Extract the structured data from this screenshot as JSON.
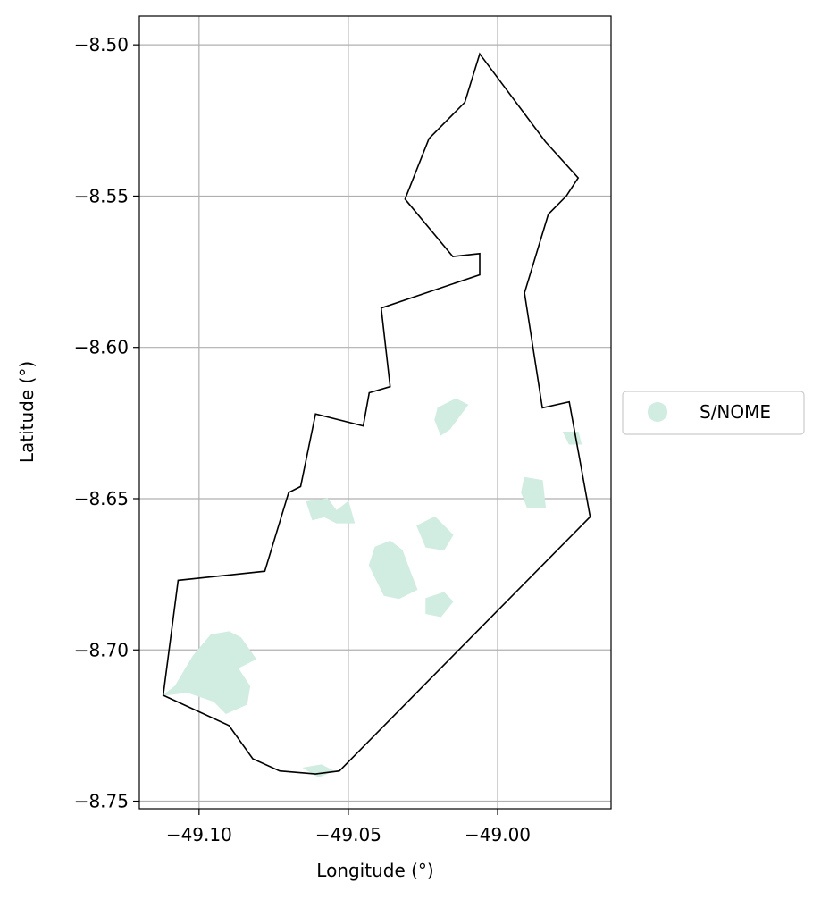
{
  "chart_data": {
    "type": "map",
    "xlabel": "Longitude (°)",
    "ylabel": "Latitude (°)",
    "xlim": [
      -49.12,
      -48.962
    ],
    "ylim": [
      -8.7525,
      -8.4905
    ],
    "xticks": [
      -49.1,
      -49.05,
      -49.0
    ],
    "xtick_labels": [
      "−49.10",
      "−49.05",
      "−49.00"
    ],
    "yticks": [
      -8.5,
      -8.55,
      -8.6,
      -8.65,
      -8.7,
      -8.75
    ],
    "ytick_labels": [
      "−8.50",
      "−8.55",
      "−8.60",
      "−8.65",
      "−8.70",
      "−8.75"
    ],
    "grid": true,
    "legend_position": "center-right-outside",
    "legend": [
      {
        "label": "S/NOME",
        "color": "#d1ece0"
      }
    ],
    "boundary": {
      "stroke_color": "#000000",
      "points": [
        [
          -49.006,
          -8.503
        ],
        [
          -48.984,
          -8.532
        ],
        [
          -48.973,
          -8.544
        ],
        [
          -48.977,
          -8.55
        ],
        [
          -48.983,
          -8.556
        ],
        [
          -48.991,
          -8.582
        ],
        [
          -48.985,
          -8.62
        ],
        [
          -48.976,
          -8.618
        ],
        [
          -48.969,
          -8.656
        ],
        [
          -49.053,
          -8.74
        ],
        [
          -49.061,
          -8.741
        ],
        [
          -49.073,
          -8.74
        ],
        [
          -49.082,
          -8.736
        ],
        [
          -49.09,
          -8.725
        ],
        [
          -49.112,
          -8.715
        ],
        [
          -49.107,
          -8.677
        ],
        [
          -49.078,
          -8.674
        ],
        [
          -49.07,
          -8.648
        ],
        [
          -49.066,
          -8.646
        ],
        [
          -49.061,
          -8.622
        ],
        [
          -49.045,
          -8.626
        ],
        [
          -49.043,
          -8.615
        ],
        [
          -49.036,
          -8.613
        ],
        [
          -49.039,
          -8.587
        ],
        [
          -49.006,
          -8.576
        ],
        [
          -49.006,
          -8.569
        ],
        [
          -49.015,
          -8.57
        ],
        [
          -49.031,
          -8.551
        ],
        [
          -49.023,
          -8.531
        ],
        [
          -49.011,
          -8.519
        ]
      ]
    },
    "regions": [
      {
        "name": "S/NOME",
        "fill": "#d1ece0",
        "points": [
          [
            -49.108,
            -8.712
          ],
          [
            -49.102,
            -8.702
          ],
          [
            -49.096,
            -8.695
          ],
          [
            -49.09,
            -8.694
          ],
          [
            -49.086,
            -8.696
          ],
          [
            -49.081,
            -8.703
          ],
          [
            -49.087,
            -8.706
          ],
          [
            -49.083,
            -8.712
          ],
          [
            -49.084,
            -8.718
          ],
          [
            -49.091,
            -8.721
          ],
          [
            -49.095,
            -8.717
          ],
          [
            -49.104,
            -8.714
          ],
          [
            -49.112,
            -8.715
          ]
        ]
      },
      {
        "name": "S/NOME",
        "fill": "#d1ece0",
        "points": [
          [
            -49.041,
            -8.666
          ],
          [
            -49.036,
            -8.664
          ],
          [
            -49.032,
            -8.667
          ],
          [
            -49.029,
            -8.675
          ],
          [
            -49.027,
            -8.68
          ],
          [
            -49.033,
            -8.683
          ],
          [
            -49.038,
            -8.682
          ],
          [
            -49.04,
            -8.678
          ],
          [
            -49.043,
            -8.672
          ]
        ]
      },
      {
        "name": "S/NOME",
        "fill": "#d1ece0",
        "points": [
          [
            -49.027,
            -8.659
          ],
          [
            -49.021,
            -8.656
          ],
          [
            -49.015,
            -8.662
          ],
          [
            -49.018,
            -8.667
          ],
          [
            -49.024,
            -8.666
          ]
        ]
      },
      {
        "name": "S/NOME",
        "fill": "#d1ece0",
        "points": [
          [
            -49.024,
            -8.683
          ],
          [
            -49.018,
            -8.681
          ],
          [
            -49.015,
            -8.684
          ],
          [
            -49.019,
            -8.689
          ],
          [
            -49.024,
            -8.688
          ]
        ]
      },
      {
        "name": "S/NOME",
        "fill": "#d1ece0",
        "points": [
          [
            -49.064,
            -8.651
          ],
          [
            -49.057,
            -8.65
          ],
          [
            -49.054,
            -8.654
          ],
          [
            -49.05,
            -8.651
          ],
          [
            -49.048,
            -8.658
          ],
          [
            -49.054,
            -8.658
          ],
          [
            -49.058,
            -8.656
          ],
          [
            -49.062,
            -8.657
          ]
        ]
      },
      {
        "name": "S/NOME",
        "fill": "#d1ece0",
        "points": [
          [
            -49.02,
            -8.62
          ],
          [
            -49.014,
            -8.617
          ],
          [
            -49.01,
            -8.619
          ],
          [
            -49.016,
            -8.627
          ],
          [
            -49.019,
            -8.629
          ],
          [
            -49.021,
            -8.624
          ]
        ]
      },
      {
        "name": "S/NOME",
        "fill": "#d1ece0",
        "points": [
          [
            -48.991,
            -8.643
          ],
          [
            -48.985,
            -8.644
          ],
          [
            -48.984,
            -8.653
          ],
          [
            -48.99,
            -8.653
          ],
          [
            -48.992,
            -8.648
          ]
        ]
      },
      {
        "name": "S/NOME",
        "fill": "#d1ece0",
        "points": [
          [
            -48.978,
            -8.628
          ],
          [
            -48.973,
            -8.628
          ],
          [
            -48.972,
            -8.632
          ],
          [
            -48.976,
            -8.632
          ]
        ]
      },
      {
        "name": "S/NOME",
        "fill": "#d1ece0",
        "points": [
          [
            -49.065,
            -8.739
          ],
          [
            -49.059,
            -8.738
          ],
          [
            -49.055,
            -8.74
          ],
          [
            -49.06,
            -8.742
          ]
        ]
      }
    ]
  }
}
